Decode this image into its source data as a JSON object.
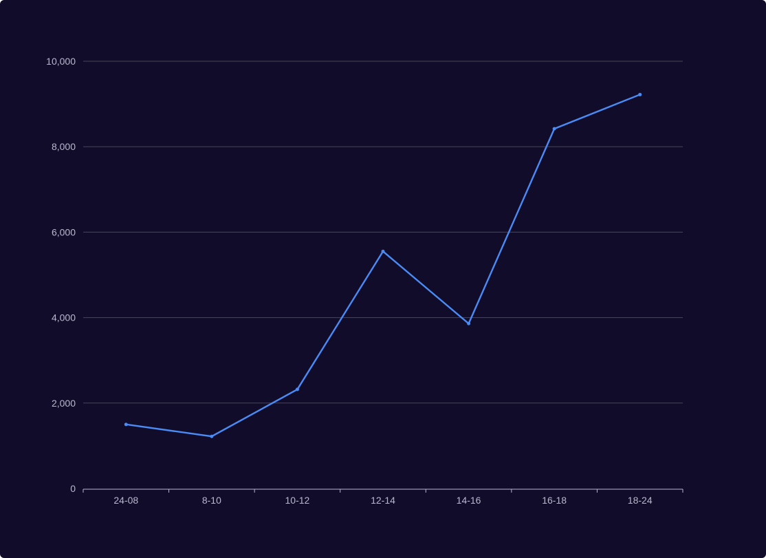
{
  "chart_data": {
    "type": "line",
    "title": "",
    "xlabel": "",
    "ylabel": "",
    "categories": [
      "24-08",
      "8-10",
      "10-12",
      "12-14",
      "14-16",
      "16-18",
      "18-24"
    ],
    "series": [
      {
        "values": [
          1500,
          1220,
          2320,
          5550,
          3860,
          8420,
          9220
        ]
      }
    ],
    "ylim": [
      0,
      10000
    ],
    "yticks": [
      0,
      2000,
      4000,
      6000,
      8000,
      10000
    ],
    "ytick_labels": [
      "0",
      "2,000",
      "4,000",
      "6,000",
      "8,000",
      "10,000"
    ],
    "grid": true,
    "legend": "none",
    "colors": {
      "background": "#100c2a",
      "line": "#4b8bf5",
      "grid": "#484753",
      "axis": "#b9b8ce",
      "text": "#b9b8ce"
    }
  }
}
